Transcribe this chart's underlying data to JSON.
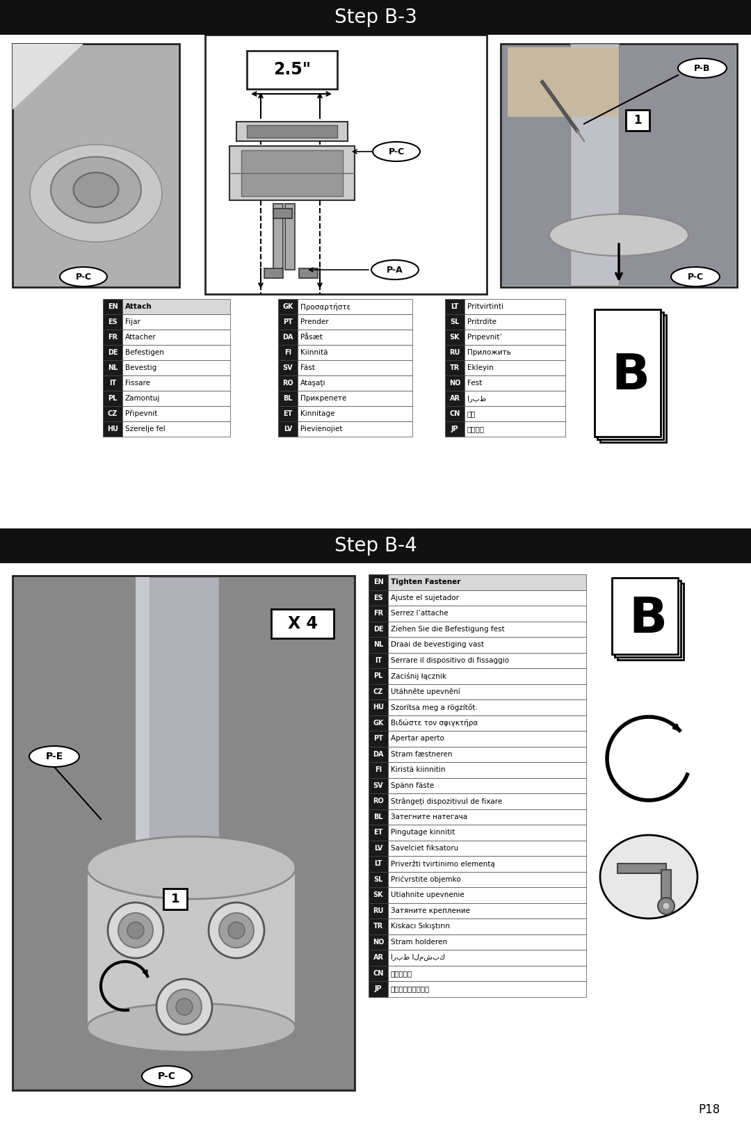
{
  "bg_color": "#ffffff",
  "step_b3_title": "Step B-3",
  "step_b4_title": "Step B-4",
  "page_number": "P18",
  "b3_translation_cols": [
    [
      [
        "EN",
        "Attach",
        true
      ],
      [
        "ES",
        "Fijar",
        false
      ],
      [
        "FR",
        "Attacher",
        false
      ],
      [
        "DE",
        "Befestigen",
        false
      ],
      [
        "NL",
        "Bevestig",
        false
      ],
      [
        "IT",
        "Fissare",
        false
      ],
      [
        "PL",
        "Zamontuj",
        false
      ],
      [
        "CZ",
        "Připevnit",
        false
      ],
      [
        "HU",
        "Szerelje fel",
        false
      ]
    ],
    [
      [
        "GK",
        "Προσαρτήστε",
        false
      ],
      [
        "PT",
        "Prender",
        false
      ],
      [
        "DA",
        "Påsæt",
        false
      ],
      [
        "FI",
        "Kiinnitä",
        false
      ],
      [
        "SV",
        "Fäst",
        false
      ],
      [
        "RO",
        "Ataşaţi",
        false
      ],
      [
        "BL",
        "Прикрепете",
        false
      ],
      [
        "ET",
        "Kinnitage",
        false
      ],
      [
        "LV",
        "Pievienojiet",
        false
      ]
    ],
    [
      [
        "LT",
        "Pritvirtinti",
        false
      ],
      [
        "SL",
        "Pritrdite",
        false
      ],
      [
        "SK",
        "Pripevnit’",
        false
      ],
      [
        "RU",
        "Приложить",
        false
      ],
      [
        "TR",
        "Ekleyin",
        false
      ],
      [
        "NO",
        "Fest",
        false
      ],
      [
        "AR",
        "اربط",
        false
      ],
      [
        "CN",
        "联接",
        false
      ],
      [
        "JP",
        "取り付け",
        false
      ]
    ]
  ],
  "b4_translation_rows": [
    [
      "EN",
      "Tighten Fastener",
      true
    ],
    [
      "ES",
      "Ajuste el sujetador",
      false
    ],
    [
      "FR",
      "Serrez l’attache",
      false
    ],
    [
      "DE",
      "Ziehen Sie die Befestigung fest",
      false
    ],
    [
      "NL",
      "Draai de bevestiging vast",
      false
    ],
    [
      "IT",
      "Serrare il dispositivo di fissaggio",
      false
    ],
    [
      "PL",
      "Zaciśnij łącznik",
      false
    ],
    [
      "CZ",
      "Utáhněte upevnění",
      false
    ],
    [
      "HU",
      "Szorítsa meg a rögzítőt.",
      false
    ],
    [
      "GK",
      "Βιδώστε τον σφιγκτήρα",
      false
    ],
    [
      "PT",
      "Apertar aperto",
      false
    ],
    [
      "DA",
      "Stram fæstneren",
      false
    ],
    [
      "FI",
      "Kiristä kiinnitin",
      false
    ],
    [
      "SV",
      "Spänn fäste",
      false
    ],
    [
      "RO",
      "Strângeţi dispozitivul de fixare",
      false
    ],
    [
      "BL",
      "Затегните натегача",
      false
    ],
    [
      "ET",
      "Pingutage kinnitit",
      false
    ],
    [
      "LV",
      "Savelciet fiksatoru",
      false
    ],
    [
      "LT",
      "Priveržti tvirtinimo elementą",
      false
    ],
    [
      "SL",
      "Pričvrstite objemko",
      false
    ],
    [
      "SK",
      "Utiahnite upevnenie",
      false
    ],
    [
      "RU",
      "Затяните крепление",
      false
    ],
    [
      "TR",
      "Kiskacı Sıkıştırın",
      false
    ],
    [
      "NO",
      "Stram holderen",
      false
    ],
    [
      "AR",
      "اربط المشبك",
      false
    ],
    [
      "CN",
      "拹紧固定件",
      false
    ],
    [
      "JP",
      "留め具を締めます。",
      false
    ]
  ]
}
